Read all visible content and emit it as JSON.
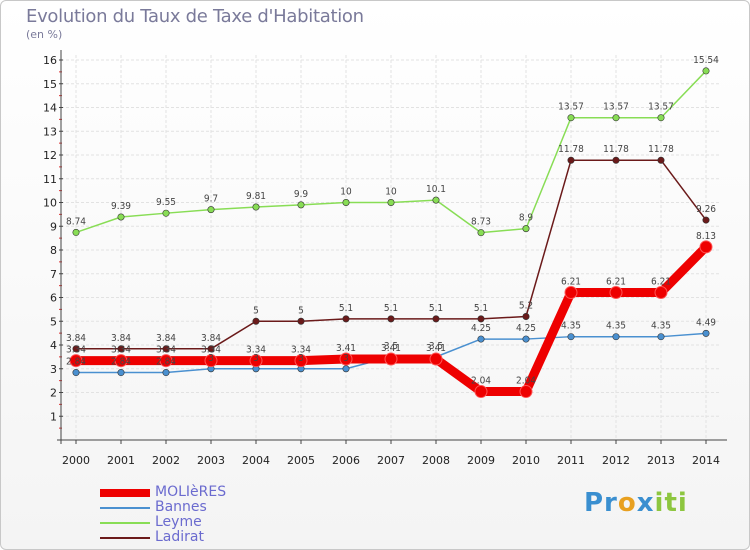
{
  "title": "Evolution du Taux de Taxe d'Habitation",
  "subtitle": "(en %)",
  "logo": {
    "parts": [
      "Pr",
      "o",
      "x",
      "iti"
    ],
    "colors": [
      "#3a8fd0",
      "#e8a020",
      "#3a8fd0",
      "#8dc63f"
    ]
  },
  "chart_data": {
    "type": "line",
    "title": "Evolution du Taux de Taxe d'Habitation",
    "ylabel": "(en %)",
    "xlabel": "",
    "x": [
      "2000",
      "2001",
      "2002",
      "2003",
      "2004",
      "2005",
      "2006",
      "2007",
      "2008",
      "2009",
      "2010",
      "2011",
      "2012",
      "2013",
      "2014"
    ],
    "ylim": [
      0,
      16
    ],
    "yticks": [
      "1",
      "2",
      "3",
      "4",
      "5",
      "6",
      "7",
      "8",
      "9",
      "10",
      "11",
      "12",
      "13",
      "14",
      "15",
      "16"
    ],
    "grid": true,
    "legend_position": "bottom-left",
    "series": [
      {
        "name": "MOLIèRES",
        "color": "#ee0000",
        "values": [
          3.34,
          3.34,
          3.34,
          3.34,
          3.34,
          3.34,
          3.41,
          3.41,
          3.41,
          2.04,
          2.04,
          6.21,
          6.21,
          6.21,
          8.13
        ],
        "labels": [
          "3.34",
          "3.34",
          "3.34",
          "3.34",
          "3.34",
          "3.34",
          "3.41",
          "3.41",
          "3.41",
          "2.04",
          "2.04",
          "6.21",
          "6.21",
          "6.21",
          "8.13"
        ]
      },
      {
        "name": "Bannes",
        "color": "#4a90d0",
        "values": [
          2.84,
          2.84,
          2.84,
          3,
          3,
          3,
          3,
          3.5,
          3.5,
          4.25,
          4.25,
          4.35,
          4.35,
          4.35,
          4.49
        ],
        "labels": [
          "2.84",
          "2.84",
          "2.84",
          "3",
          "3",
          "3",
          "3",
          "3.5",
          "3.5",
          "4.25",
          "4.25",
          "4.35",
          "4.35",
          "4.35",
          "4.49"
        ]
      },
      {
        "name": "Leyme",
        "color": "#88dd55",
        "values": [
          8.74,
          9.39,
          9.55,
          9.7,
          9.81,
          9.9,
          10,
          10,
          10.1,
          8.73,
          8.9,
          13.57,
          13.57,
          13.57,
          15.54
        ],
        "labels": [
          "8.74",
          "9.39",
          "9.55",
          "9.7",
          "9.81",
          "9.9",
          "10",
          "10",
          "10.1",
          "8.73",
          "8.9",
          "13.57",
          "13.57",
          "13.57",
          "15.54"
        ]
      },
      {
        "name": "Ladirat",
        "color": "#6b1a1a",
        "values": [
          3.84,
          3.84,
          3.84,
          3.84,
          5,
          5,
          5.1,
          5.1,
          5.1,
          5.1,
          5.2,
          11.78,
          11.78,
          11.78,
          9.26
        ],
        "labels": [
          "3.84",
          "3.84",
          "3.84",
          "3.84",
          "5",
          "5",
          "5.1",
          "5.1",
          "5.1",
          "5.1",
          "5.2",
          "11.78",
          "11.78",
          "11.78",
          "9.26"
        ]
      }
    ]
  }
}
